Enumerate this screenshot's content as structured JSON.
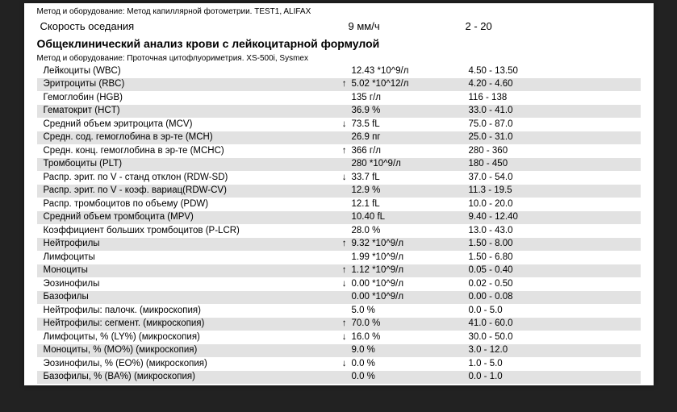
{
  "section1": {
    "method_line": "Метод и оборудование:  Метод капиллярной фотометрии. TEST1, ALIFAX",
    "rows": [
      {
        "param": "Скорость оседания",
        "flag": "",
        "value": "9 мм/ч",
        "range": "2 - 20",
        "striped": false,
        "wide": true
      }
    ]
  },
  "section2": {
    "title": "Общеклинический анализ крови с лейкоцитарной формулой",
    "method_line": "Метод и оборудование:  Проточная цитофлуориметрия. XS-500i, Sysmex",
    "rows": [
      {
        "param": "Лейкоциты (WBC)",
        "flag": "",
        "value": "12.43 *10^9/л",
        "range": "4.50 - 13.50"
      },
      {
        "param": "Эритроциты (RBC)",
        "flag": "↑",
        "value": "5.02 *10^12/л",
        "range": "4.20 - 4.60"
      },
      {
        "param": "Гемоглобин (HGB)",
        "flag": "",
        "value": "135 г/л",
        "range": "116 - 138"
      },
      {
        "param": "Гематокрит (HCT)",
        "flag": "",
        "value": "36.9 %",
        "range": "33.0 - 41.0"
      },
      {
        "param": "Средний объем эритроцита (MCV)",
        "flag": "↓",
        "value": "73.5 fL",
        "range": "75.0 - 87.0"
      },
      {
        "param": "Средн. сод. гемоглобина в эр-те (MCH)",
        "flag": "",
        "value": "26.9 пг",
        "range": "25.0 - 31.0"
      },
      {
        "param": "Средн. конц. гемоглобина в эр-те (MCHC)",
        "flag": "↑",
        "value": "366 г/л",
        "range": "280 - 360"
      },
      {
        "param": "Тромбоциты (PLT)",
        "flag": "",
        "value": "280 *10^9/л",
        "range": "180 - 450"
      },
      {
        "param": "Распр. эрит. по V - станд отклон (RDW-SD)",
        "flag": "↓",
        "value": "33.7 fL",
        "range": "37.0 - 54.0"
      },
      {
        "param": "Распр. эрит. по V - коэф. вариац(RDW-CV)",
        "flag": "",
        "value": "12.9 %",
        "range": "11.3 - 19.5"
      },
      {
        "param": "Распр. тромбоцитов по объему (PDW)",
        "flag": "",
        "value": "12.1 fL",
        "range": "10.0 - 20.0"
      },
      {
        "param": "Средний объем тромбоцита (MPV)",
        "flag": "",
        "value": "10.40 fL",
        "range": "9.40 - 12.40"
      },
      {
        "param": "Коэффициент больших тромбоцитов (P-LCR)",
        "flag": "",
        "value": "28.0 %",
        "range": "13.0 - 43.0"
      },
      {
        "param": "Нейтрофилы",
        "flag": "↑",
        "value": "9.32 *10^9/л",
        "range": "1.50 - 8.00"
      },
      {
        "param": "Лимфоциты",
        "flag": "",
        "value": "1.99 *10^9/л",
        "range": "1.50 - 6.80"
      },
      {
        "param": "Моноциты",
        "flag": "↑",
        "value": "1.12 *10^9/л",
        "range": "0.05 - 0.40"
      },
      {
        "param": "Эозинофилы",
        "flag": "↓",
        "value": "0.00 *10^9/л",
        "range": "0.02 - 0.50"
      },
      {
        "param": "Базофилы",
        "flag": "",
        "value": "0.00 *10^9/л",
        "range": "0.00 - 0.08"
      },
      {
        "param": "Нейтрофилы: палочк. (микроскопия)",
        "flag": "",
        "value": "5.0 %",
        "range": "0.0 - 5.0"
      },
      {
        "param": "Нейтрофилы: сегмент. (микроскопия)",
        "flag": "↑",
        "value": "70.0 %",
        "range": "41.0 - 60.0"
      },
      {
        "param": "Лимфоциты, % (LY%) (микроскопия)",
        "flag": "↓",
        "value": "16.0 %",
        "range": "30.0 - 50.0"
      },
      {
        "param": "Моноциты, % (MO%) (микроскопия)",
        "flag": "",
        "value": "9.0 %",
        "range": "3.0 - 12.0"
      },
      {
        "param": "Эозинофилы, % (EO%) (микроскопия)",
        "flag": "↓",
        "value": "0.0 %",
        "range": "1.0 - 5.0"
      },
      {
        "param": "Базофилы, % (BA%) (микроскопия)",
        "flag": "",
        "value": "0.0 %",
        "range": "0.0 - 1.0"
      }
    ]
  }
}
